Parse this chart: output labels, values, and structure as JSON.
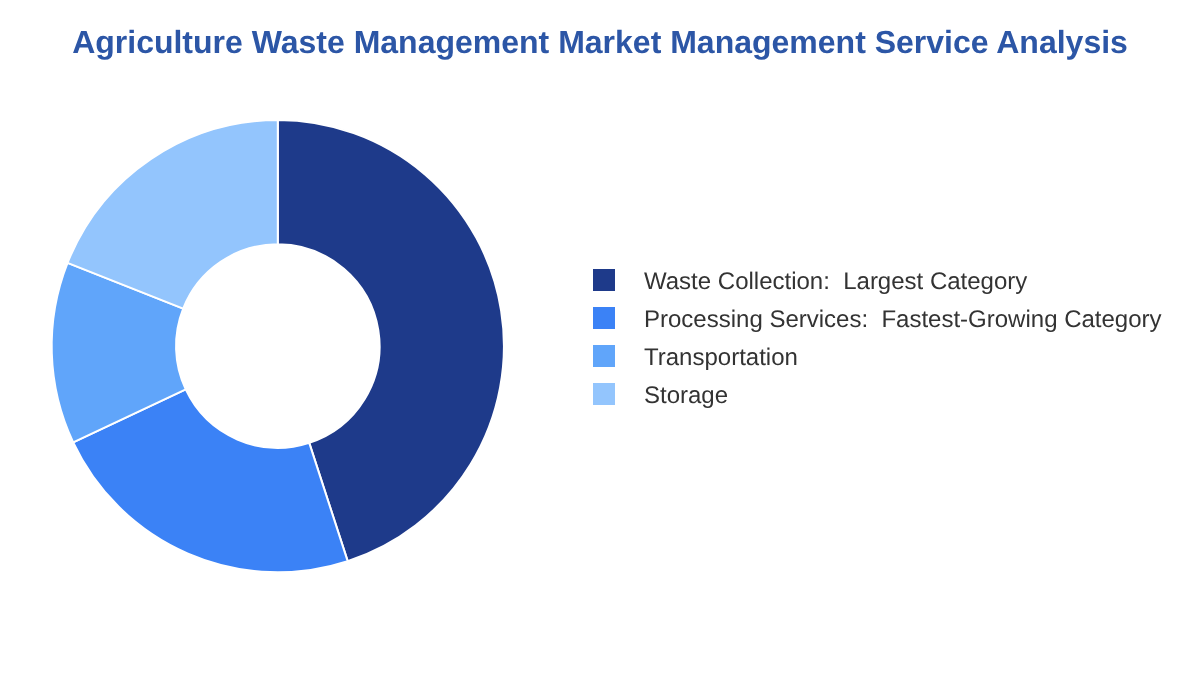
{
  "chart_data": {
    "type": "donut",
    "title": "Agriculture Waste Management Market Management Service Analysis",
    "categories": [
      "Waste Collection:  Largest Category",
      "Processing Services:  Fastest-Growing Category",
      "Transportation",
      "Storage"
    ],
    "values": [
      45,
      23,
      13,
      19
    ],
    "colors": [
      "#1e3a8a",
      "#3b82f6",
      "#60a5fa",
      "#93c5fd"
    ],
    "legend": "right"
  }
}
